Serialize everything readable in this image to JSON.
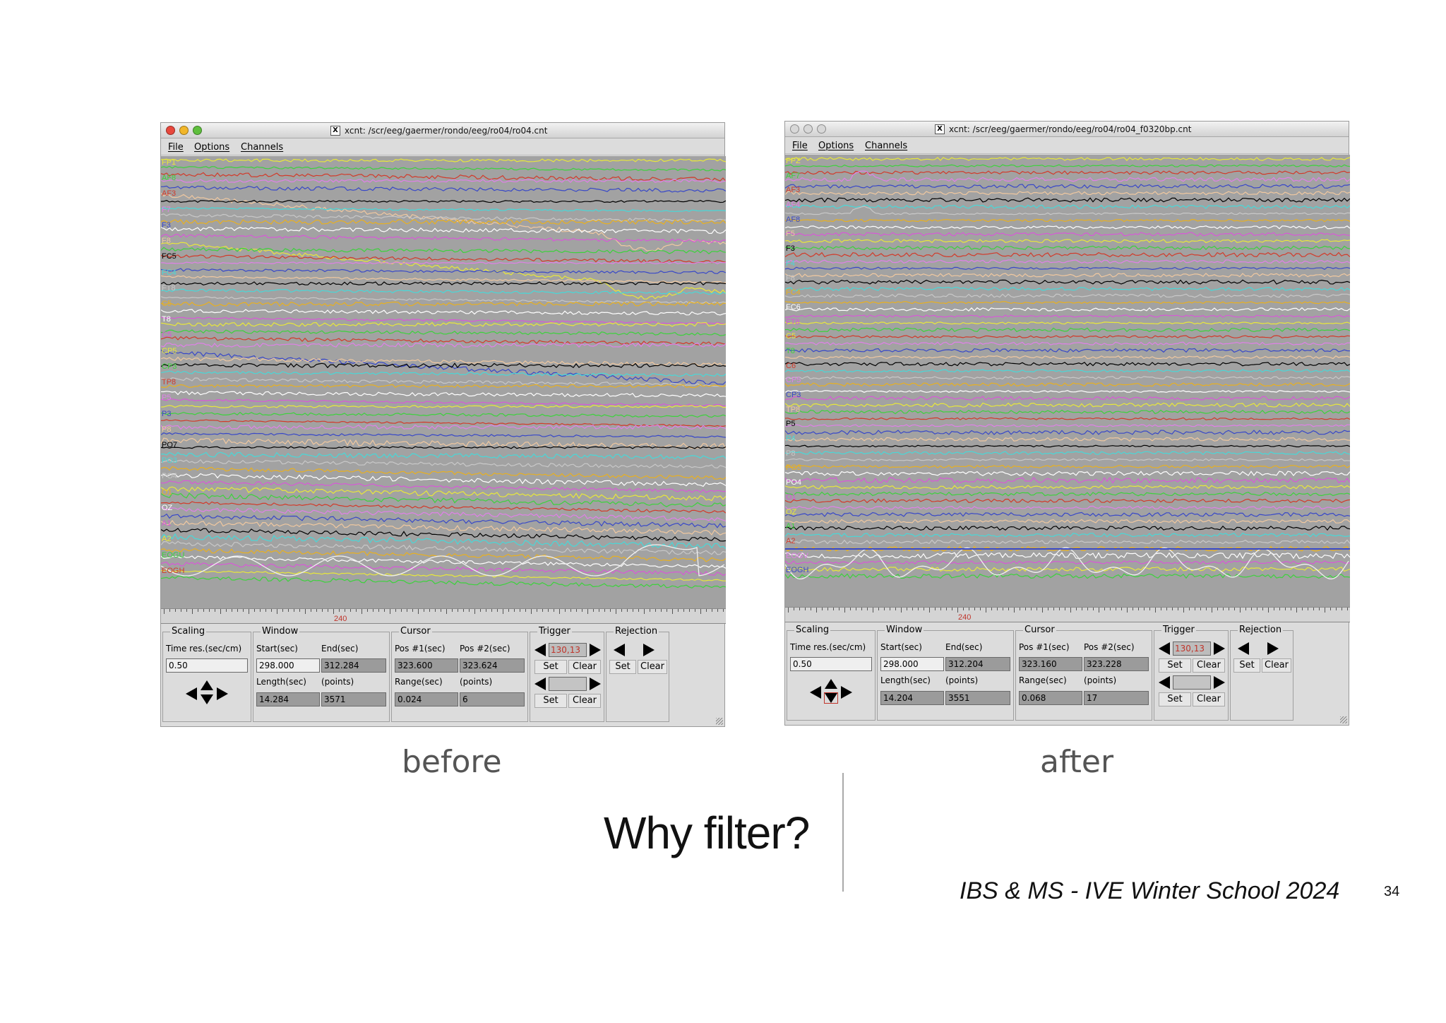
{
  "slide": {
    "title": "Why filter?",
    "footer": "IBS & MS - IVE Winter School 2024",
    "page_number": "34"
  },
  "windows": [
    {
      "id": "before",
      "caption": "before",
      "title": "xcnt: /scr/eeg/gaermer/rondo/eeg/ro04/ro04.cnt",
      "menu": [
        "File",
        "Options",
        "Channels"
      ],
      "channels": [
        "FP1",
        "AF8",
        "AF3",
        "F7",
        "F3",
        "F8",
        "FC5",
        "FC4",
        "FT8",
        "C5",
        "T8",
        "C5",
        "CP5",
        "CP3",
        "TP8",
        "P5",
        "P3",
        "P8",
        "PO7",
        "PO3",
        "PO4",
        "O1",
        "OZ",
        "A1",
        "A2",
        "EOGU",
        "EOGH"
      ],
      "ruler_label": "240",
      "scaling": {
        "title": "Scaling",
        "label": "Time res.(sec/cm)",
        "value": "0.50"
      },
      "window_panel": {
        "title": "Window",
        "start_label": "Start(sec)",
        "end_label": "End(sec)",
        "start": "298.000",
        "end": "312.284",
        "length_label": "Length(sec)",
        "points_label": "(points)",
        "length": "14.284",
        "points": "3571"
      },
      "cursor": {
        "title": "Cursor",
        "pos1_label": "Pos #1(sec)",
        "pos2_label": "Pos #2(sec)",
        "pos1": "323.600",
        "pos2": "323.624",
        "range_label": "Range(sec)",
        "points_label": "(points)",
        "range": "0.024",
        "points": "6"
      },
      "trigger": {
        "title": "Trigger",
        "value": "130,13",
        "set": "Set",
        "clear": "Clear"
      },
      "rejection": {
        "title": "Rejection",
        "set": "Set",
        "clear": "Clear"
      },
      "drift": true
    },
    {
      "id": "after",
      "caption": "after",
      "title": "xcnt: /scr/eeg/gaermer/rondo/eeg/ro04/ro04_f0320bp.cnt",
      "menu": [
        "File",
        "Options",
        "Channels"
      ],
      "channels": [
        "FPZ",
        "AF7",
        "AF3",
        "AF4",
        "AF8",
        "F5",
        "F3",
        "F4",
        "F8",
        "FC4",
        "FC6",
        "FT8",
        "C5",
        "T8",
        "C6",
        "CP5",
        "CP3",
        "TP8",
        "P5",
        "P4",
        "P8",
        "PO3",
        "PO4",
        "O1",
        "OZ",
        "A1",
        "A2",
        "EOGV",
        "EOGH"
      ],
      "ruler_label": "240",
      "scaling": {
        "title": "Scaling",
        "label": "Time res.(sec/cm)",
        "value": "0.50"
      },
      "window_panel": {
        "title": "Window",
        "start_label": "Start(sec)",
        "end_label": "End(sec)",
        "start": "298.000",
        "end": "312.204",
        "length_label": "Length(sec)",
        "points_label": "(points)",
        "length": "14.204",
        "points": "3551"
      },
      "cursor": {
        "title": "Cursor",
        "pos1_label": "Pos #1(sec)",
        "pos2_label": "Pos #2(sec)",
        "pos1": "323.160",
        "pos2": "323.228",
        "range_label": "Range(sec)",
        "points_label": "(points)",
        "range": "0.068",
        "points": "17"
      },
      "trigger": {
        "title": "Trigger",
        "value": "130,13",
        "set": "Set",
        "clear": "Clear"
      },
      "rejection": {
        "title": "Rejection",
        "set": "Set",
        "clear": "Clear"
      },
      "drift": false
    }
  ],
  "trace_colors": [
    "#e8e83a",
    "#3cd23c",
    "#d23a2a",
    "#e080e8",
    "#3848c8",
    "#f0c8a0",
    "#000000",
    "#48d8d8",
    "#c8c8c8",
    "#e8b020",
    "#ffffff",
    "#d858d8"
  ]
}
